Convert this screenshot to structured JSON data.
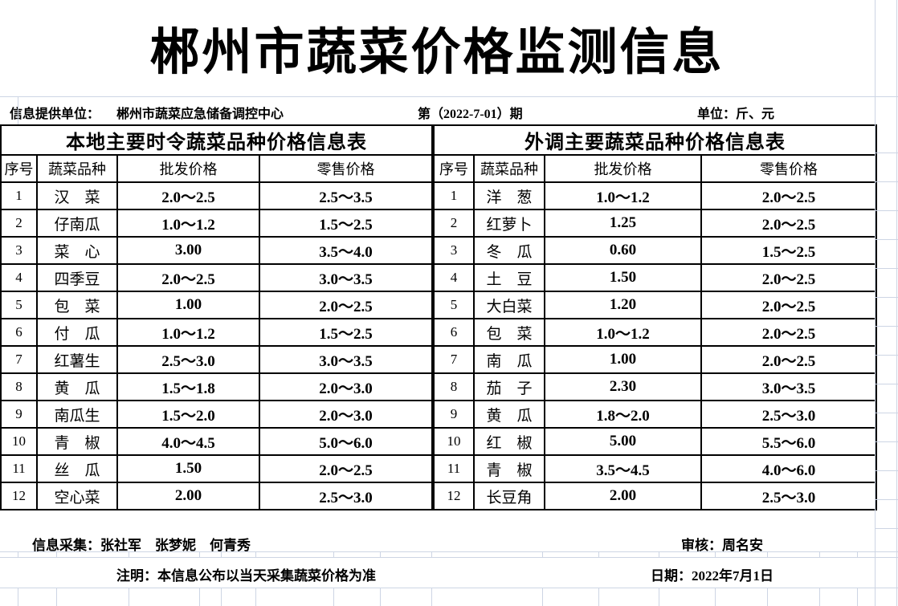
{
  "title": "郴州市蔬菜价格监测信息",
  "meta": {
    "provider_label": "信息提供单位：",
    "provider": "郴州市蔬菜应急储备调控中心",
    "issue": "第（2022-7-01）期",
    "unit": "单位：斤、元"
  },
  "left_table": {
    "title": "本地主要时令蔬菜品种价格信息表",
    "columns": [
      "序号",
      "蔬菜品种",
      "批发价格",
      "零售价格"
    ],
    "rows": [
      [
        "1",
        "汉　菜",
        "2.0～2.5",
        "2.5～3.5"
      ],
      [
        "2",
        "仔南瓜",
        "1.0～1.2",
        "1.5～2.5"
      ],
      [
        "3",
        "菜　心",
        "3.00",
        "3.5～4.0"
      ],
      [
        "4",
        "四季豆",
        "2.0～2.5",
        "3.0～3.5"
      ],
      [
        "5",
        "包　菜",
        "1.00",
        "2.0～2.5"
      ],
      [
        "6",
        "付　瓜",
        "1.0～1.2",
        "1.5～2.5"
      ],
      [
        "7",
        "红薯生",
        "2.5～3.0",
        "3.0～3.5"
      ],
      [
        "8",
        "黄　瓜",
        "1.5～1.8",
        "2.0～3.0"
      ],
      [
        "9",
        "南瓜生",
        "1.5～2.0",
        "2.0～3.0"
      ],
      [
        "10",
        "青　椒",
        "4.0～4.5",
        "5.0～6.0"
      ],
      [
        "11",
        "丝　瓜",
        "1.50",
        "2.0～2.5"
      ],
      [
        "12",
        "空心菜",
        "2.00",
        "2.5～3.0"
      ]
    ]
  },
  "right_table": {
    "title": "外调主要蔬菜品种价格信息表",
    "columns": [
      "序号",
      "蔬菜品种",
      "批发价格",
      "零售价格"
    ],
    "rows": [
      [
        "1",
        "洋　葱",
        "1.0～1.2",
        "2.0～2.5"
      ],
      [
        "2",
        "红萝卜",
        "1.25",
        "2.0～2.5"
      ],
      [
        "3",
        "冬　瓜",
        "0.60",
        "1.5～2.5"
      ],
      [
        "4",
        "土　豆",
        "1.50",
        "2.0～2.5"
      ],
      [
        "5",
        "大白菜",
        "1.20",
        "2.0～2.5"
      ],
      [
        "6",
        "包　菜",
        "1.0～1.2",
        "2.0～2.5"
      ],
      [
        "7",
        "南　瓜",
        "1.00",
        "2.0～2.5"
      ],
      [
        "8",
        "茄　子",
        "2.30",
        "3.0～3.5"
      ],
      [
        "9",
        "黄　瓜",
        "1.8～2.0",
        "2.5～3.0"
      ],
      [
        "10",
        "红　椒",
        "5.00",
        "5.5～6.0"
      ],
      [
        "11",
        "青　椒",
        "3.5～4.5",
        "4.0～6.0"
      ],
      [
        "12",
        "长豆角",
        "2.00",
        "2.5～3.0"
      ]
    ]
  },
  "footer": {
    "collect": "信息采集：张社军　张梦妮　何青秀",
    "audit": "审核：周名安",
    "note": "注明：本信息公布以当天采集蔬菜价格为准",
    "date": "日期：2022年7月1日"
  }
}
